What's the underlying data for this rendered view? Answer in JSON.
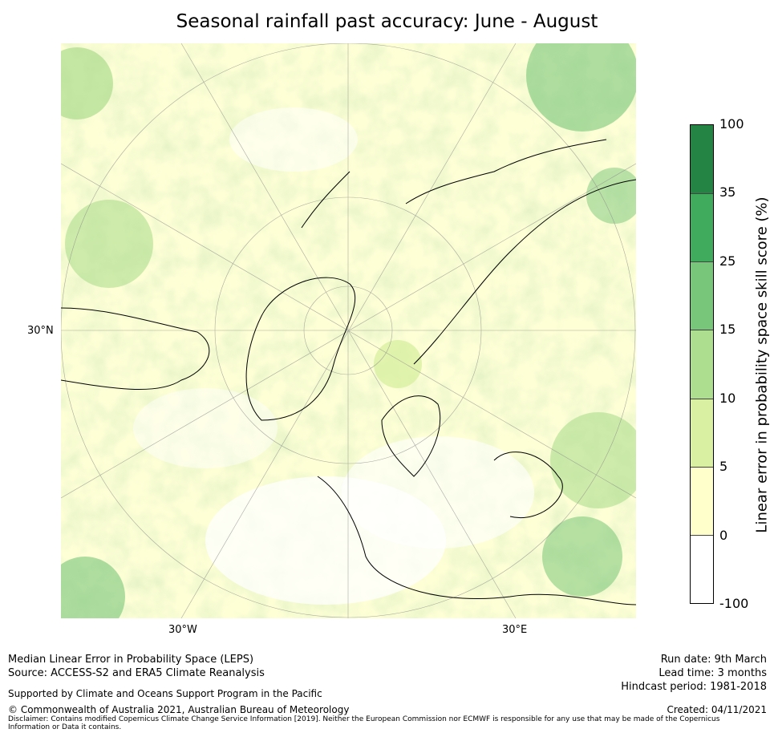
{
  "title": "Seasonal rainfall past accuracy: June - August",
  "map": {
    "projection": "North polar stereographic",
    "labels": {
      "lat_30n": "30°N",
      "lon_30w": "30°W",
      "lon_30e": "30°E"
    }
  },
  "colorbar": {
    "label": "Linear error in probability space skill score (%)",
    "ticks": [
      "100",
      "35",
      "25",
      "15",
      "10",
      "5",
      "0",
      "-100"
    ],
    "bins": [
      {
        "from": -100,
        "to": 0,
        "color": "#ffffff"
      },
      {
        "from": 0,
        "to": 5,
        "color": "#ffffcc"
      },
      {
        "from": 5,
        "to": 10,
        "color": "#d9f0a3"
      },
      {
        "from": 10,
        "to": 15,
        "color": "#addd8e"
      },
      {
        "from": 15,
        "to": 25,
        "color": "#78c679"
      },
      {
        "from": 25,
        "to": 35,
        "color": "#41ab5d"
      },
      {
        "from": 35,
        "to": 100,
        "color": "#238443"
      }
    ]
  },
  "footer": {
    "left": {
      "line1": "Median Linear Error in Probability Space (LEPS)",
      "line2": "Source: ACCESS-S2 and ERA5 Climate Reanalysis",
      "support": "Supported by Climate and Oceans Support Program in the Pacific",
      "copyright": "© Commonwealth of Australia 2021, Australian Bureau of Meteorology",
      "disclaimer": "Disclaimer: Contains modified Copernicus Climate Change Service Information [2019]. Neither the European Commission nor ECMWF is responsible for any use that may be made of the Copernicus Information or Data it contains."
    },
    "right": {
      "run_date": "Run date: 9th March",
      "lead_time": "Lead time: 3 months",
      "hindcast": "Hindcast period: 1981-2018",
      "created": "Created: 04/11/2021"
    }
  }
}
